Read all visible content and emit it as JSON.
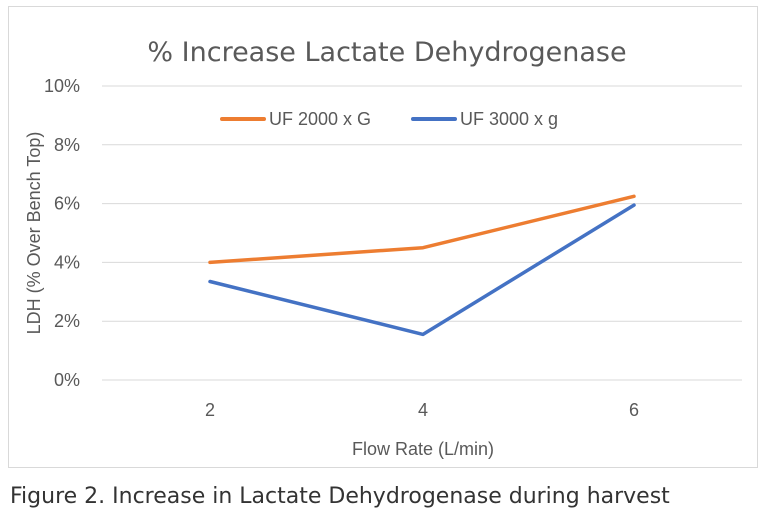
{
  "caption": "Figure 2. Increase in Lactate Dehydrogenase during harvest",
  "chart_data": {
    "type": "line",
    "title": "% Increase Lactate Dehydrogenase",
    "xlabel": "Flow Rate (L/min)",
    "ylabel": "LDH (% Over Bench Top)",
    "categories": [
      "2",
      "4",
      "6"
    ],
    "ylim": [
      0,
      10
    ],
    "yticks": [
      "0%",
      "2%",
      "4%",
      "6%",
      "8%",
      "10%"
    ],
    "ytick_values": [
      0,
      2,
      4,
      6,
      8,
      10
    ],
    "grid": true,
    "legend_position": "top",
    "series": [
      {
        "name": "UF 2000 x G",
        "color": "#ED7D31",
        "values": [
          4.0,
          4.5,
          6.25
        ]
      },
      {
        "name": "UF 3000 x g",
        "color": "#4472C4",
        "values": [
          3.35,
          1.55,
          5.95
        ]
      }
    ]
  }
}
